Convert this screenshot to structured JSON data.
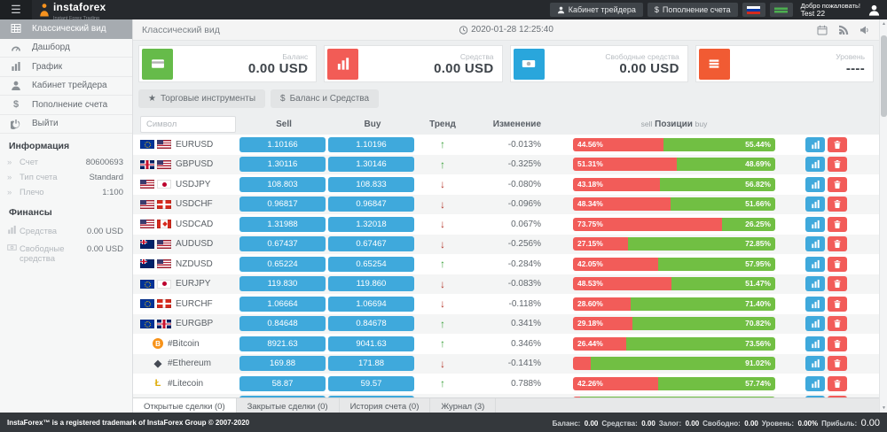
{
  "header": {
    "logo_name": "instaforex",
    "logo_tagline": "Instant Forex Trading",
    "nav_cabinet": "Кабинет трейдера",
    "nav_deposit": "Пополнение счета",
    "deposit_symbol": "$",
    "welcome": "Добро пожаловать!",
    "username": "Test 22"
  },
  "sidebar": {
    "items": [
      {
        "key": "classic-view",
        "label": "Классический вид",
        "icon": "table",
        "active": true
      },
      {
        "key": "dashboard",
        "label": "Дашборд",
        "icon": "gauge",
        "active": false
      },
      {
        "key": "chart",
        "label": "График",
        "icon": "chart",
        "active": false
      },
      {
        "key": "trader-cabinet",
        "label": "Кабинет трейдера",
        "icon": "user",
        "active": false
      },
      {
        "key": "deposit",
        "label": "Пополнение счета",
        "icon": "dollar",
        "active": false
      },
      {
        "key": "logout",
        "label": "Выйти",
        "icon": "power",
        "active": false
      }
    ],
    "info_title": "Информация",
    "info_rows": [
      {
        "label": "Счет",
        "value": "80600693"
      },
      {
        "label": "Тип счета",
        "value": "Standard"
      },
      {
        "label": "Плечо",
        "value": "1:100"
      }
    ],
    "finance_title": "Финансы",
    "finance_rows": [
      {
        "label": "Средства",
        "value": "0.00 USD",
        "icon": "chart"
      },
      {
        "label": "Свободные средства",
        "value": "0.00 USD",
        "icon": "banknote"
      }
    ]
  },
  "main": {
    "page_title": "Классический вид",
    "timestamp": "2020-01-28 12:25:40",
    "cards": [
      {
        "label": "Баланс",
        "value": "0.00 USD",
        "icon": "credit-card",
        "color": "#66bb4a"
      },
      {
        "label": "Средства",
        "value": "0.00 USD",
        "icon": "bar-chart",
        "color": "#f25c56"
      },
      {
        "label": "Свободные средства",
        "value": "0.00 USD",
        "icon": "banknote",
        "color": "#29a6dc"
      },
      {
        "label": "Уровень",
        "value": "----",
        "icon": "list",
        "color": "#f15b33"
      }
    ],
    "filter_buttons": [
      {
        "key": "trading-instruments",
        "label": "Торговые инструменты",
        "icon": "star"
      },
      {
        "key": "balance-funds",
        "label": "Баланс и Средства",
        "icon": "dollar"
      }
    ],
    "table": {
      "search_placeholder": "Символ",
      "col_sell": "Sell",
      "col_buy": "Buy",
      "col_trend": "Тренд",
      "col_change": "Изменение",
      "col_positions": "Позиции",
      "col_pos_sell": "sell",
      "col_pos_buy": "buy",
      "rows": [
        {
          "symbol": "EURUSD",
          "flags": [
            "eu",
            "us"
          ],
          "sell": "1.10166",
          "buy": "1.10196",
          "trend": "up",
          "change": "-0.013%",
          "sell_pct": 44.56,
          "buy_pct": 55.44,
          "sell_label": "44.56%",
          "buy_label": "55.44%"
        },
        {
          "symbol": "GBPUSD",
          "flags": [
            "gb",
            "us"
          ],
          "sell": "1.30116",
          "buy": "1.30146",
          "trend": "up",
          "change": "-0.325%",
          "sell_pct": 51.31,
          "buy_pct": 48.69,
          "sell_label": "51.31%",
          "buy_label": "48.69%"
        },
        {
          "symbol": "USDJPY",
          "flags": [
            "us",
            "jp"
          ],
          "sell": "108.803",
          "buy": "108.833",
          "trend": "down",
          "change": "-0.080%",
          "sell_pct": 43.18,
          "buy_pct": 56.82,
          "sell_label": "43.18%",
          "buy_label": "56.82%"
        },
        {
          "symbol": "USDCHF",
          "flags": [
            "us",
            "ch"
          ],
          "sell": "0.96817",
          "buy": "0.96847",
          "trend": "down",
          "change": "-0.096%",
          "sell_pct": 48.34,
          "buy_pct": 51.66,
          "sell_label": "48.34%",
          "buy_label": "51.66%"
        },
        {
          "symbol": "USDCAD",
          "flags": [
            "us",
            "ca"
          ],
          "sell": "1.31988",
          "buy": "1.32018",
          "trend": "down",
          "change": "0.067%",
          "sell_pct": 73.75,
          "buy_pct": 26.25,
          "sell_label": "73.75%",
          "buy_label": "26.25%"
        },
        {
          "symbol": "AUDUSD",
          "flags": [
            "au",
            "us"
          ],
          "sell": "0.67437",
          "buy": "0.67467",
          "trend": "down",
          "change": "-0.256%",
          "sell_pct": 27.15,
          "buy_pct": 72.85,
          "sell_label": "27.15%",
          "buy_label": "72.85%"
        },
        {
          "symbol": "NZDUSD",
          "flags": [
            "nz",
            "us"
          ],
          "sell": "0.65224",
          "buy": "0.65254",
          "trend": "up",
          "change": "-0.284%",
          "sell_pct": 42.05,
          "buy_pct": 57.95,
          "sell_label": "42.05%",
          "buy_label": "57.95%"
        },
        {
          "symbol": "EURJPY",
          "flags": [
            "eu",
            "jp"
          ],
          "sell": "119.830",
          "buy": "119.860",
          "trend": "down",
          "change": "-0.083%",
          "sell_pct": 48.53,
          "buy_pct": 51.47,
          "sell_label": "48.53%",
          "buy_label": "51.47%"
        },
        {
          "symbol": "EURCHF",
          "flags": [
            "eu",
            "ch"
          ],
          "sell": "1.06664",
          "buy": "1.06694",
          "trend": "down",
          "change": "-0.118%",
          "sell_pct": 28.6,
          "buy_pct": 71.4,
          "sell_label": "28.60%",
          "buy_label": "71.40%"
        },
        {
          "symbol": "EURGBP",
          "flags": [
            "eu",
            "gb"
          ],
          "sell": "0.84648",
          "buy": "0.84678",
          "trend": "up",
          "change": "0.341%",
          "sell_pct": 29.18,
          "buy_pct": 70.82,
          "sell_label": "29.18%",
          "buy_label": "70.82%"
        },
        {
          "symbol": "#Bitcoin",
          "crypto": "btc",
          "crypto_glyph": "B",
          "sell": "8921.63",
          "buy": "9041.63",
          "trend": "up",
          "change": "0.346%",
          "sell_pct": 26.44,
          "buy_pct": 73.56,
          "sell_label": "26.44%",
          "buy_label": "73.56%"
        },
        {
          "symbol": "#Ethereum",
          "crypto": "eth",
          "crypto_glyph": "◆",
          "sell": "169.88",
          "buy": "171.88",
          "trend": "down",
          "change": "-0.141%",
          "sell_pct": 8.98,
          "buy_pct": 91.02,
          "sell_label": "",
          "buy_label": "91.02%"
        },
        {
          "symbol": "#Litecoin",
          "crypto": "ltc",
          "crypto_glyph": "Ł",
          "sell": "58.87",
          "buy": "59.57",
          "trend": "up",
          "change": "0.788%",
          "sell_pct": 42.26,
          "buy_pct": 57.74,
          "sell_label": "42.26%",
          "buy_label": "57.74%"
        },
        {
          "symbol": "",
          "crypto": "xrp",
          "crypto_glyph": "",
          "sell": "",
          "buy": "",
          "trend": "up",
          "change": "",
          "sell_pct": 3.5,
          "buy_pct": 96.5,
          "sell_label": "",
          "buy_label": "",
          "partial": true
        }
      ]
    },
    "tabs": [
      {
        "key": "open-trades",
        "label": "Открытые сделки (0)",
        "active": true
      },
      {
        "key": "closed-trades",
        "label": "Закрытые сделки (0)",
        "active": false
      },
      {
        "key": "account-history",
        "label": "История счета (0)",
        "active": false
      },
      {
        "key": "journal",
        "label": "Журнал (3)",
        "active": false
      }
    ]
  },
  "footer": {
    "copyright": "InstaForex™ is a registered trademark of InstaForex Group © 2007-2020",
    "stats": [
      {
        "label": "Баланс:",
        "value": "0.00",
        "big": false
      },
      {
        "label": "Средства:",
        "value": "0.00",
        "big": false
      },
      {
        "label": "Залог:",
        "value": "0.00",
        "big": false
      },
      {
        "label": "Свободно:",
        "value": "0.00",
        "big": false
      },
      {
        "label": "Уровень:",
        "value": "0.00%",
        "big": false
      },
      {
        "label": "Прибыль:",
        "value": "0.00",
        "big": true
      }
    ]
  }
}
